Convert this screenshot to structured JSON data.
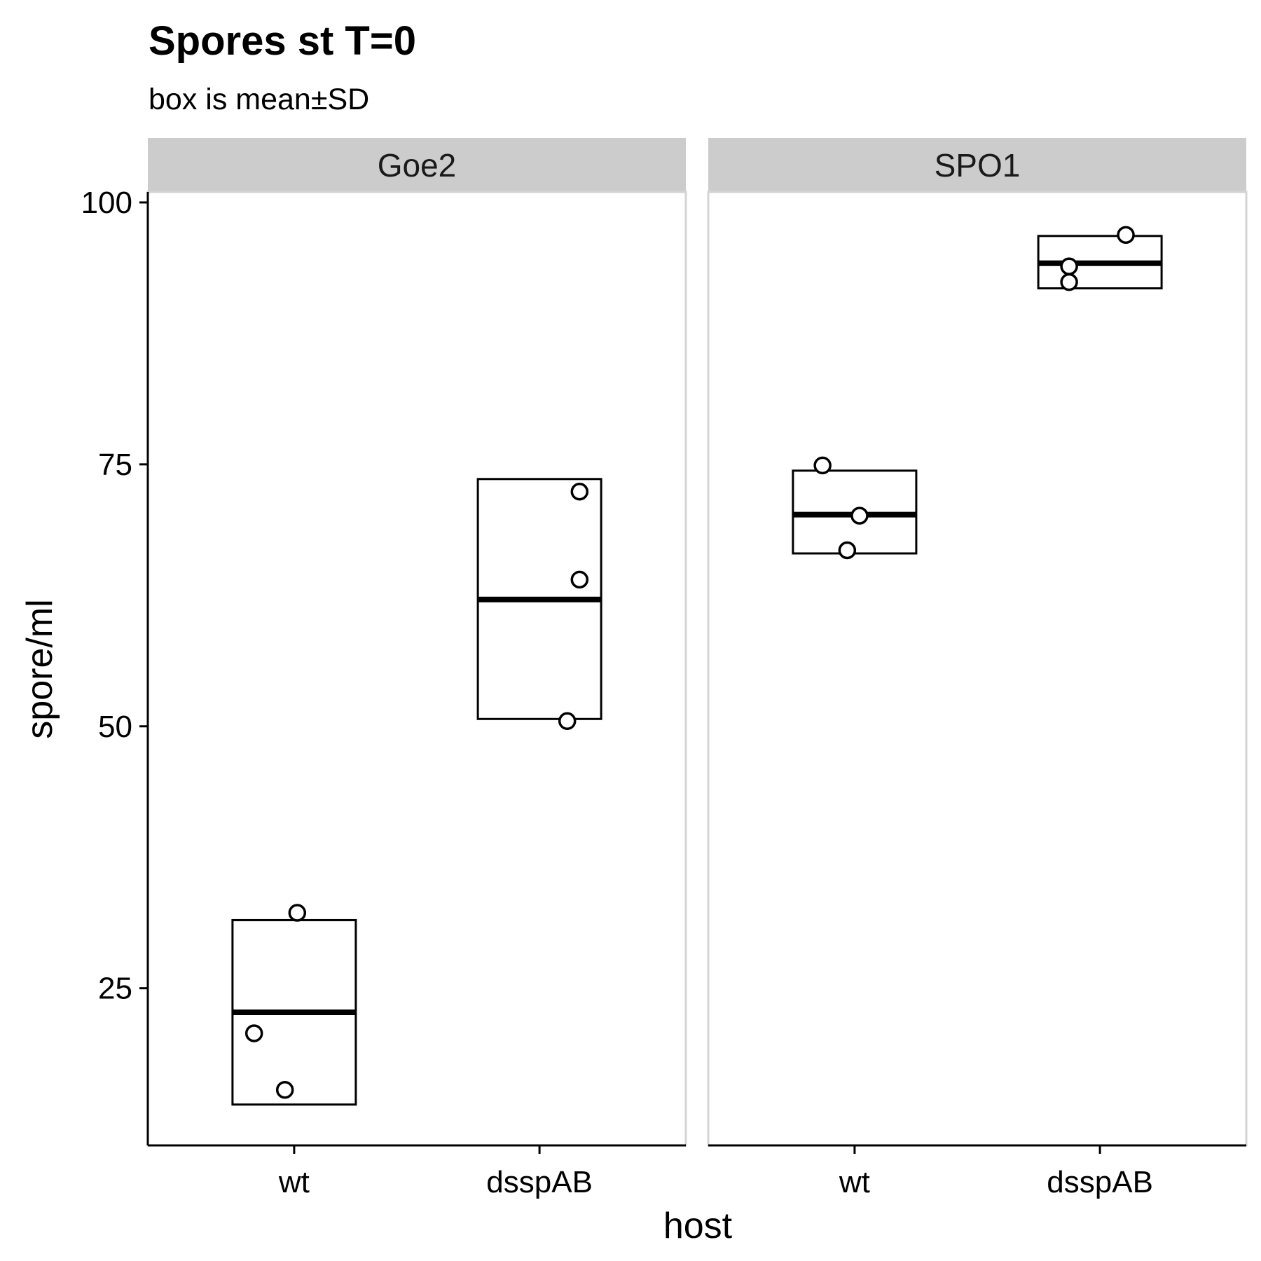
{
  "chart_data": {
    "type": "crossbar",
    "title": "Spores st T=0",
    "subtitle": "box is mean±SD",
    "xlabel": "host",
    "ylabel": "spore/ml",
    "ylim": [
      10,
      101
    ],
    "yticks": [
      25,
      50,
      75,
      100
    ],
    "categories": [
      "wt",
      "dsspAB"
    ],
    "grid": false,
    "colors": {
      "strip_fill": "#cccccc",
      "panel_border": "#d4d4d4",
      "axis": "#000000",
      "point_fill": "#ffffff"
    },
    "panels": [
      {
        "name": "Goe2",
        "groups": [
          {
            "category": "wt",
            "mean": 22.7,
            "lower": 13.9,
            "upper": 31.5,
            "points": [
              32.2,
              20.7,
              15.3
            ]
          },
          {
            "category": "dsspAB",
            "mean": 62.1,
            "lower": 50.7,
            "upper": 73.6,
            "points": [
              72.4,
              64.0,
              50.5
            ]
          }
        ]
      },
      {
        "name": "SPO1",
        "groups": [
          {
            "category": "wt",
            "mean": 70.2,
            "lower": 66.5,
            "upper": 74.4,
            "points": [
              74.9,
              70.1,
              66.8
            ]
          },
          {
            "category": "dsspAB",
            "mean": 94.2,
            "lower": 91.8,
            "upper": 96.8,
            "points": [
              96.9,
              93.9,
              92.4
            ]
          }
        ]
      }
    ]
  }
}
